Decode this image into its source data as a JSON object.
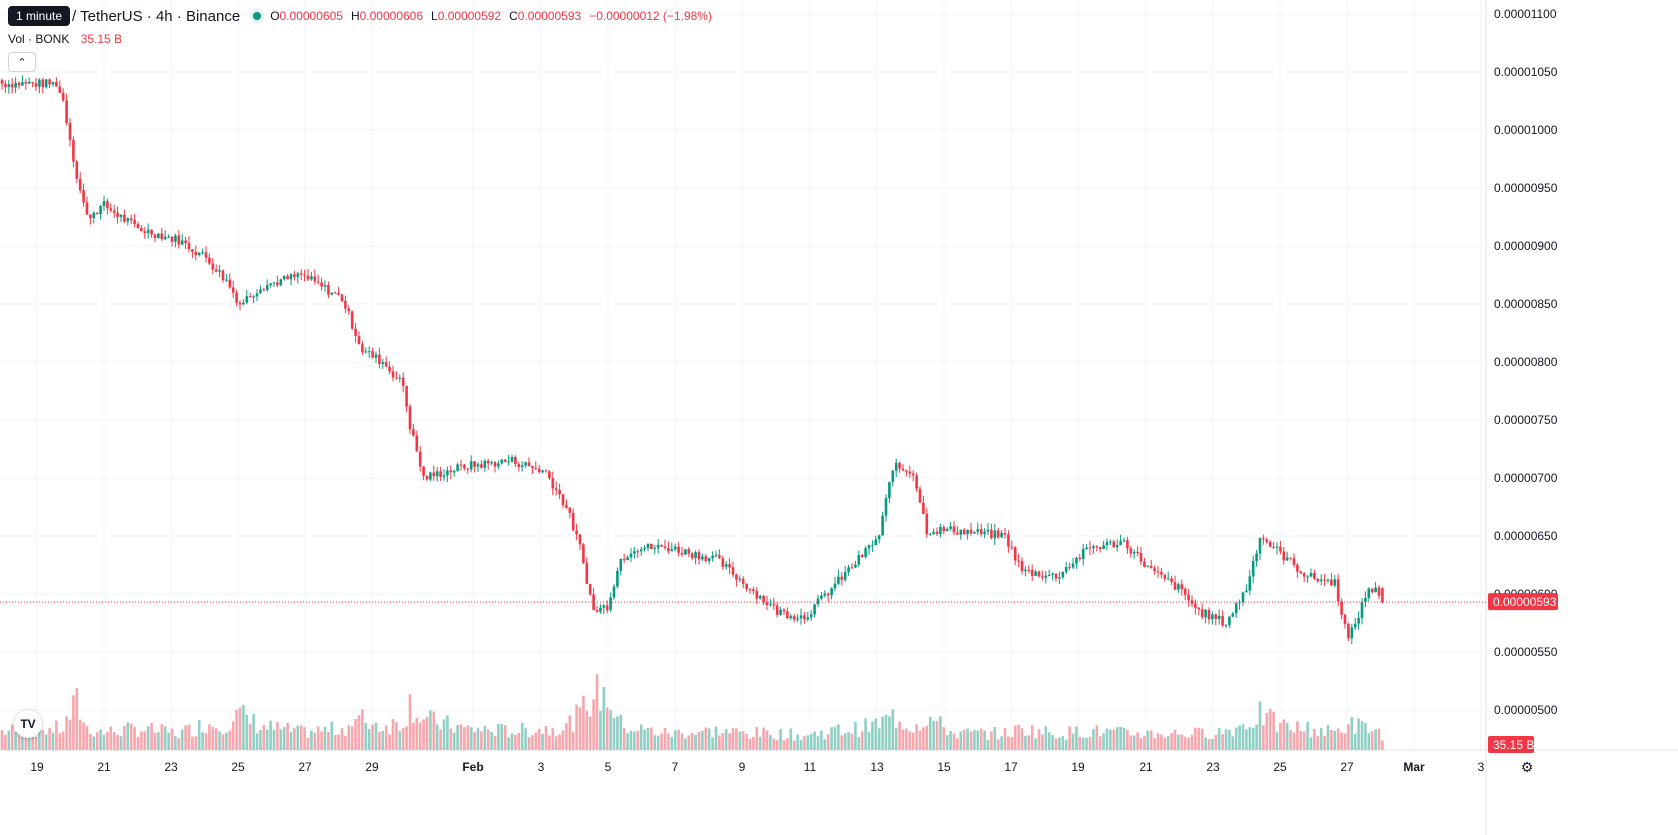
{
  "legend": {
    "tooltip": "1 minute",
    "title": "/ TetherUS · 4h · Binance",
    "open_key": "O",
    "open_val": "0.00000605",
    "high_key": "H",
    "high_val": "0.00000606",
    "low_key": "L",
    "low_val": "0.00000592",
    "close_key": "C",
    "close_val": "0.00000593",
    "change": "−0.00000012 (−1.98%)",
    "vol_label": "Vol · BONK",
    "vol_value": "35.15 B",
    "collapse_icon": "chevron-up-icon"
  },
  "chart_data": {
    "type": "candlestick",
    "interval": "4h",
    "y_ticks": [
      "0.00001100",
      "0.00001050",
      "0.00001000",
      "0.00000950",
      "0.00000900",
      "0.00000850",
      "0.00000800",
      "0.00000750",
      "0.00000700",
      "0.00000650",
      "0.00000600",
      "0.00000550",
      "0.00000500"
    ],
    "ylim": [
      4.95e-06,
      1.1e-05
    ],
    "x_ticks": [
      "19",
      "21",
      "23",
      "25",
      "27",
      "29",
      "Feb",
      "3",
      "5",
      "7",
      "9",
      "11",
      "13",
      "15",
      "17",
      "19",
      "21",
      "23",
      "25",
      "27",
      "Mar",
      "3"
    ],
    "last_price_label": "0.00000593",
    "last_price": 5.93e-06,
    "last_volume_label": "35.15 B",
    "colors": {
      "up": "#089981",
      "down": "#f23645",
      "vol_up": "#8fcfc4",
      "vol_down": "#f7a6ac",
      "grid": "#f0f3fa"
    },
    "anchors": [
      [
        0,
        1040,
        16
      ],
      [
        16,
        1040,
        18
      ],
      [
        18,
        1025,
        18
      ],
      [
        22,
        960,
        40
      ],
      [
        25,
        925,
        18
      ],
      [
        30,
        935,
        15
      ],
      [
        40,
        915,
        18
      ],
      [
        52,
        905,
        14
      ],
      [
        60,
        890,
        22
      ],
      [
        66,
        870,
        22
      ],
      [
        70,
        850,
        30
      ],
      [
        76,
        865,
        20
      ],
      [
        88,
        875,
        15
      ],
      [
        100,
        855,
        18
      ],
      [
        106,
        810,
        26
      ],
      [
        112,
        800,
        20
      ],
      [
        118,
        780,
        24
      ],
      [
        120,
        745,
        40
      ],
      [
        124,
        700,
        26
      ],
      [
        136,
        710,
        18
      ],
      [
        150,
        715,
        16
      ],
      [
        160,
        705,
        18
      ],
      [
        166,
        675,
        20
      ],
      [
        170,
        640,
        30
      ],
      [
        174,
        585,
        48
      ],
      [
        178,
        590,
        45
      ],
      [
        182,
        630,
        22
      ],
      [
        186,
        640,
        18
      ],
      [
        196,
        640,
        14
      ],
      [
        210,
        630,
        16
      ],
      [
        220,
        605,
        14
      ],
      [
        228,
        585,
        14
      ],
      [
        236,
        580,
        12
      ],
      [
        244,
        605,
        16
      ],
      [
        252,
        630,
        18
      ],
      [
        258,
        650,
        22
      ],
      [
        262,
        710,
        28
      ],
      [
        268,
        705,
        20
      ],
      [
        272,
        655,
        28
      ],
      [
        280,
        655,
        14
      ],
      [
        295,
        650,
        14
      ],
      [
        300,
        620,
        18
      ],
      [
        310,
        615,
        14
      ],
      [
        320,
        640,
        16
      ],
      [
        330,
        645,
        14
      ],
      [
        338,
        620,
        14
      ],
      [
        346,
        605,
        14
      ],
      [
        352,
        585,
        14
      ],
      [
        360,
        575,
        16
      ],
      [
        366,
        605,
        22
      ],
      [
        370,
        650,
        30
      ],
      [
        376,
        635,
        20
      ],
      [
        384,
        615,
        18
      ],
      [
        392,
        610,
        15
      ],
      [
        396,
        560,
        22
      ],
      [
        402,
        605,
        18
      ],
      [
        406,
        600,
        14
      ]
    ],
    "last_candle": {
      "open": 6.05e-06,
      "high": 6.06e-06,
      "low": 5.92e-06,
      "close": 5.93e-06,
      "volume": 35.15
    }
  }
}
